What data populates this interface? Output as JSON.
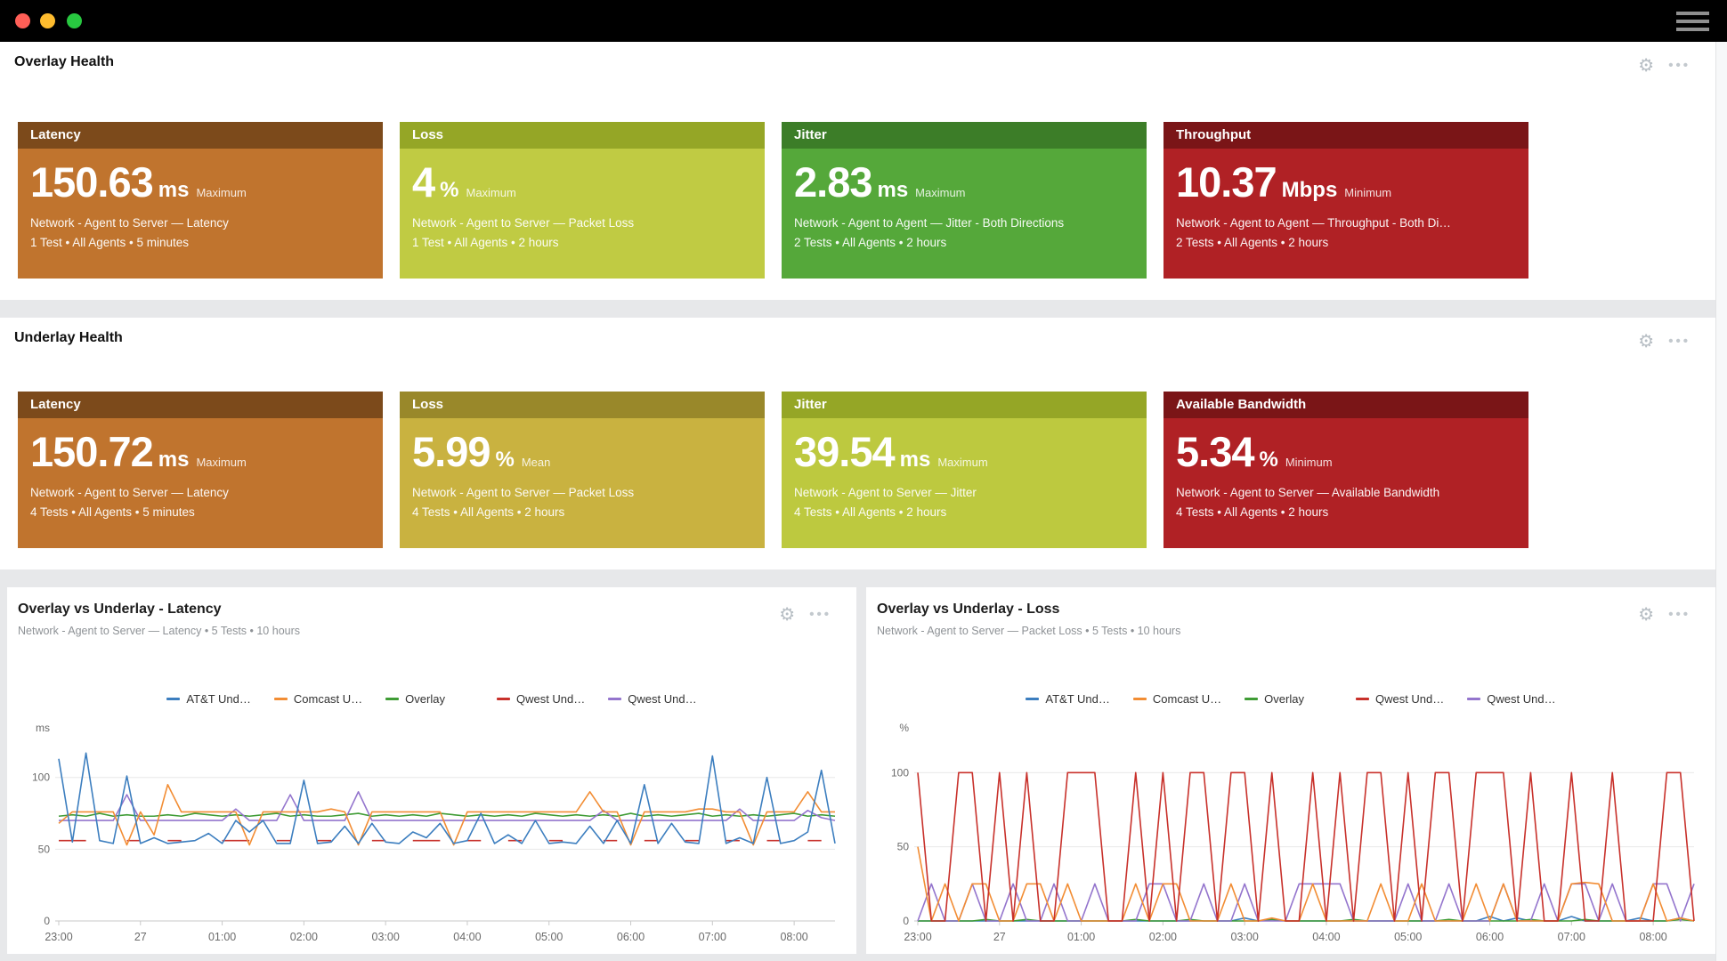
{
  "titlebar": {
    "traffic_lights": {
      "close": "#ff5f57",
      "minimize": "#febc2e",
      "zoom": "#28c840"
    }
  },
  "icons": {
    "gear": "⚙",
    "ellipsis": "•••"
  },
  "overlay": {
    "title": "Overlay Health",
    "cards": [
      {
        "title": "Latency",
        "value": "150.63",
        "unit": "ms",
        "qualifier": "Maximum",
        "metric": "Network - Agent to Server — Latency",
        "tests": "1 Test • All Agents • 5 minutes",
        "header_color": "#7c4a1b",
        "body_color": "#c0742e"
      },
      {
        "title": "Loss",
        "value": "4",
        "unit": "%",
        "qualifier": "Maximum",
        "metric": "Network - Agent to Server — Packet Loss",
        "tests": "1 Test • All Agents • 2 hours",
        "header_color": "#95a626",
        "body_color": "#c0cb43"
      },
      {
        "title": "Jitter",
        "value": "2.83",
        "unit": "ms",
        "qualifier": "Maximum",
        "metric": "Network - Agent to Agent — Jitter - Both Directions",
        "tests": "2 Tests • All Agents • 2 hours",
        "header_color": "#3c7d28",
        "body_color": "#55a83a"
      },
      {
        "title": "Throughput",
        "value": "10.37",
        "unit": "Mbps",
        "qualifier": "Minimum",
        "metric": "Network - Agent to Agent — Throughput - Both Di…",
        "tests": "2 Tests • All Agents • 2 hours",
        "header_color": "#7a1517",
        "body_color": "#b02125"
      }
    ]
  },
  "underlay": {
    "title": "Underlay Health",
    "cards": [
      {
        "title": "Latency",
        "value": "150.72",
        "unit": "ms",
        "qualifier": "Maximum",
        "metric": "Network - Agent to Server — Latency",
        "tests": "4 Tests • All Agents • 5 minutes",
        "header_color": "#7c4a1b",
        "body_color": "#c0742e"
      },
      {
        "title": "Loss",
        "value": "5.99",
        "unit": "%",
        "qualifier": "Mean",
        "metric": "Network - Agent to Server — Packet Loss",
        "tests": "4 Tests • All Agents • 2 hours",
        "header_color": "#99882a",
        "body_color": "#c9b240"
      },
      {
        "title": "Jitter",
        "value": "39.54",
        "unit": "ms",
        "qualifier": "Maximum",
        "metric": "Network - Agent to Server — Jitter",
        "tests": "4 Tests • All Agents • 2 hours",
        "header_color": "#95a626",
        "body_color": "#bdc93f"
      },
      {
        "title": "Available Bandwidth",
        "value": "5.34",
        "unit": "%",
        "qualifier": "Minimum",
        "metric": "Network - Agent to Server — Available Bandwidth",
        "tests": "4 Tests • All Agents • 2 hours",
        "header_color": "#7a1517",
        "body_color": "#b02125"
      }
    ]
  },
  "chart_data": [
    {
      "type": "line",
      "title": "Overlay vs Underlay - Latency",
      "subtitle": "Network - Agent to Server — Latency • 5 Tests • 10 hours",
      "ylabel": "ms",
      "ylim": [
        0,
        124
      ],
      "yticks": [
        0,
        50,
        100
      ],
      "grid": true,
      "legend_position": "top-center",
      "x_tick_labels": [
        "23:00",
        "27",
        "01:00",
        "02:00",
        "03:00",
        "04:00",
        "05:00",
        "06:00",
        "07:00",
        "08:00"
      ],
      "x_tick_positions": [
        0,
        6,
        12,
        18,
        24,
        30,
        36,
        42,
        48,
        54
      ],
      "x_count": 58,
      "z_order": [
        3,
        2,
        4,
        1,
        0
      ],
      "series": [
        {
          "name": "AT&T Und…",
          "color": "#3c7ebf",
          "values": [
            113,
            55,
            117,
            56,
            54,
            101,
            54,
            58,
            54,
            55,
            56,
            61,
            54,
            70,
            62,
            70,
            54,
            54,
            98,
            54,
            55,
            66,
            54,
            68,
            55,
            54,
            62,
            58,
            68,
            54,
            56,
            75,
            54,
            60,
            54,
            70,
            54,
            55,
            54,
            66,
            54,
            70,
            54,
            95,
            54,
            68,
            55,
            54,
            115,
            54,
            58,
            54,
            100,
            54,
            56,
            62,
            105,
            54
          ]
        },
        {
          "name": "Comcast U…",
          "color": "#f28d34",
          "values": [
            68,
            76,
            76,
            76,
            76,
            53,
            76,
            60,
            95,
            76,
            76,
            76,
            76,
            76,
            53,
            76,
            76,
            76,
            76,
            76,
            78,
            76,
            53,
            76,
            76,
            76,
            76,
            76,
            76,
            53,
            76,
            76,
            76,
            76,
            76,
            76,
            76,
            76,
            76,
            90,
            76,
            76,
            53,
            76,
            76,
            76,
            76,
            78,
            78,
            76,
            76,
            53,
            76,
            76,
            76,
            90,
            76,
            76
          ]
        },
        {
          "name": "Overlay",
          "color": "#3f9c35",
          "values": [
            73,
            74,
            73,
            75,
            73,
            74,
            73,
            73,
            74,
            73,
            75,
            74,
            73,
            74,
            73,
            74,
            75,
            73,
            74,
            73,
            73,
            74,
            75,
            73,
            74,
            73,
            74,
            73,
            75,
            74,
            73,
            74,
            73,
            74,
            73,
            75,
            74,
            73,
            74,
            73,
            74,
            73,
            75,
            73,
            74,
            73,
            74,
            75,
            73,
            74,
            73,
            74,
            73,
            74,
            75,
            73,
            74,
            73
          ]
        },
        {
          "name": "Qwest Und…",
          "color": "#c8312b",
          "values": [
            56,
            56,
            56,
            null,
            null,
            56,
            56,
            null,
            56,
            56,
            null,
            null,
            56,
            56,
            56,
            null,
            56,
            56,
            null,
            56,
            56,
            null,
            null,
            56,
            56,
            null,
            56,
            56,
            56,
            null,
            56,
            56,
            null,
            56,
            56,
            null,
            56,
            56,
            null,
            null,
            56,
            56,
            null,
            56,
            56,
            null,
            56,
            56,
            null,
            56,
            56,
            null,
            56,
            56,
            null,
            56,
            56,
            null
          ]
        },
        {
          "name": "Qwest Und…",
          "color": "#9475cd",
          "values": [
            70,
            70,
            70,
            70,
            70,
            88,
            70,
            70,
            70,
            70,
            70,
            70,
            70,
            78,
            70,
            70,
            70,
            88,
            70,
            70,
            70,
            70,
            90,
            70,
            70,
            70,
            70,
            70,
            70,
            70,
            70,
            70,
            70,
            70,
            70,
            70,
            70,
            70,
            70,
            70,
            77,
            70,
            70,
            70,
            70,
            70,
            70,
            70,
            70,
            70,
            78,
            70,
            70,
            70,
            70,
            77,
            72,
            70
          ]
        }
      ]
    },
    {
      "type": "line",
      "title": "Overlay vs Underlay - Loss",
      "subtitle": "Network - Agent to Server — Packet Loss • 5 Tests • 10 hours",
      "ylabel": "%",
      "ylim": [
        0,
        120
      ],
      "yticks": [
        0,
        50,
        100
      ],
      "grid": true,
      "legend_position": "top-center",
      "x_tick_labels": [
        "23:00",
        "27",
        "01:00",
        "02:00",
        "03:00",
        "04:00",
        "05:00",
        "06:00",
        "07:00",
        "08:00"
      ],
      "x_tick_positions": [
        0,
        6,
        12,
        18,
        24,
        30,
        36,
        42,
        48,
        54
      ],
      "x_count": 58,
      "z_order": [
        0,
        2,
        4,
        1,
        3
      ],
      "series": [
        {
          "name": "AT&T Und…",
          "color": "#3c7ebf",
          "values": [
            0,
            0,
            0,
            0,
            0,
            0,
            0,
            0,
            0,
            0,
            0,
            0,
            0,
            0,
            0,
            0,
            0,
            0,
            0,
            0,
            0,
            0,
            0,
            0,
            2,
            0,
            1,
            0,
            0,
            0,
            0,
            0,
            0,
            0,
            0,
            0,
            0,
            0,
            0,
            0,
            0,
            0,
            3,
            0,
            2,
            0,
            0,
            0,
            3,
            0,
            0,
            0,
            0,
            2,
            0,
            0,
            2,
            0
          ]
        },
        {
          "name": "Comcast U…",
          "color": "#f28d34",
          "values": [
            50,
            0,
            25,
            0,
            25,
            25,
            0,
            0,
            25,
            25,
            0,
            25,
            0,
            0,
            0,
            0,
            25,
            0,
            25,
            25,
            0,
            0,
            0,
            25,
            0,
            0,
            2,
            0,
            0,
            25,
            0,
            0,
            0,
            0,
            25,
            0,
            0,
            25,
            0,
            0,
            0,
            25,
            0,
            25,
            0,
            0,
            0,
            0,
            25,
            26,
            25,
            0,
            0,
            0,
            25,
            0,
            2,
            0
          ]
        },
        {
          "name": "Overlay",
          "color": "#3f9c35",
          "values": [
            0,
            0,
            0,
            0,
            0,
            1,
            0,
            0,
            1,
            0,
            0,
            0,
            0,
            0,
            0,
            0,
            1,
            0,
            0,
            0,
            1,
            0,
            0,
            0,
            0,
            0,
            1,
            0,
            0,
            0,
            0,
            0,
            1,
            0,
            0,
            0,
            0,
            0,
            0,
            1,
            0,
            0,
            0,
            0,
            0,
            1,
            0,
            0,
            0,
            1,
            0,
            0,
            0,
            0,
            0,
            0,
            1,
            0
          ]
        },
        {
          "name": "Qwest Und…",
          "color": "#c8312b",
          "values": [
            100,
            0,
            0,
            100,
            100,
            0,
            100,
            0,
            100,
            0,
            0,
            100,
            100,
            100,
            0,
            0,
            100,
            0,
            100,
            0,
            100,
            100,
            0,
            100,
            100,
            0,
            100,
            0,
            0,
            100,
            0,
            100,
            0,
            100,
            100,
            0,
            100,
            0,
            100,
            100,
            0,
            100,
            100,
            100,
            0,
            100,
            0,
            0,
            100,
            0,
            0,
            100,
            0,
            0,
            0,
            100,
            100,
            0
          ]
        },
        {
          "name": "Qwest Und…",
          "color": "#9475cd",
          "values": [
            0,
            25,
            0,
            0,
            25,
            0,
            0,
            25,
            0,
            0,
            25,
            0,
            0,
            25,
            0,
            0,
            0,
            25,
            25,
            0,
            0,
            25,
            0,
            0,
            25,
            0,
            0,
            0,
            25,
            25,
            25,
            25,
            0,
            0,
            0,
            0,
            25,
            0,
            0,
            25,
            0,
            0,
            0,
            25,
            0,
            0,
            25,
            0,
            25,
            25,
            0,
            25,
            0,
            0,
            25,
            25,
            0,
            25
          ]
        }
      ]
    }
  ]
}
